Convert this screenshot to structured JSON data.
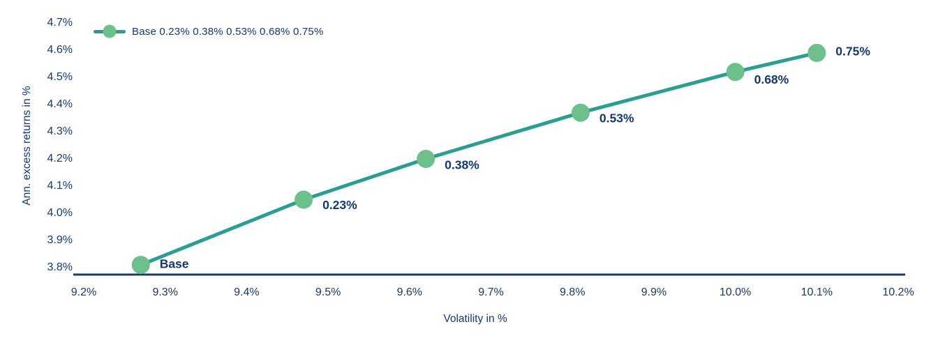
{
  "chart_data": {
    "type": "line",
    "title": "",
    "xlabel": "Volatility in %",
    "ylabel": "Ann. excess returns in %",
    "legend": "Base 0.23% 0.38% 0.53% 0.68% 0.75%",
    "legend_position": "top-left",
    "grid": false,
    "axis_line": "bottom-only",
    "xlim": [
      9.2,
      10.2
    ],
    "ylim": [
      3.8,
      4.7
    ],
    "x_ticks": [
      "9.2%",
      "9.3%",
      "9.4%",
      "9.5%",
      "9.6%",
      "9.7%",
      "9.8%",
      "9.9%",
      "10.0%",
      "10.1%",
      "10.2%"
    ],
    "x_tick_values": [
      9.2,
      9.3,
      9.4,
      9.5,
      9.6,
      9.7,
      9.8,
      9.9,
      10.0,
      10.1,
      10.2
    ],
    "y_ticks": [
      "3.8%",
      "3.9%",
      "4.0%",
      "4.1%",
      "4.2%",
      "4.3%",
      "4.4%",
      "4.5%",
      "4.6%",
      "4.7%"
    ],
    "y_tick_values": [
      3.8,
      3.9,
      4.0,
      4.1,
      4.2,
      4.3,
      4.4,
      4.5,
      4.6,
      4.7
    ],
    "series": [
      {
        "name": "Base 0.23% 0.38% 0.53% 0.68% 0.75%",
        "points": [
          {
            "x": 9.27,
            "y": 3.81,
            "label": "Base"
          },
          {
            "x": 9.47,
            "y": 4.05,
            "label": "0.23%"
          },
          {
            "x": 9.62,
            "y": 4.2,
            "label": "0.38%"
          },
          {
            "x": 9.81,
            "y": 4.37,
            "label": "0.53%"
          },
          {
            "x": 10.0,
            "y": 4.52,
            "label": "0.68%"
          },
          {
            "x": 10.1,
            "y": 4.59,
            "label": "0.75%"
          }
        ]
      }
    ],
    "colors": {
      "line": "#2b9d91",
      "marker": "#6dbf8b",
      "text": "#16386b",
      "axis": "#1e3a5f"
    }
  }
}
